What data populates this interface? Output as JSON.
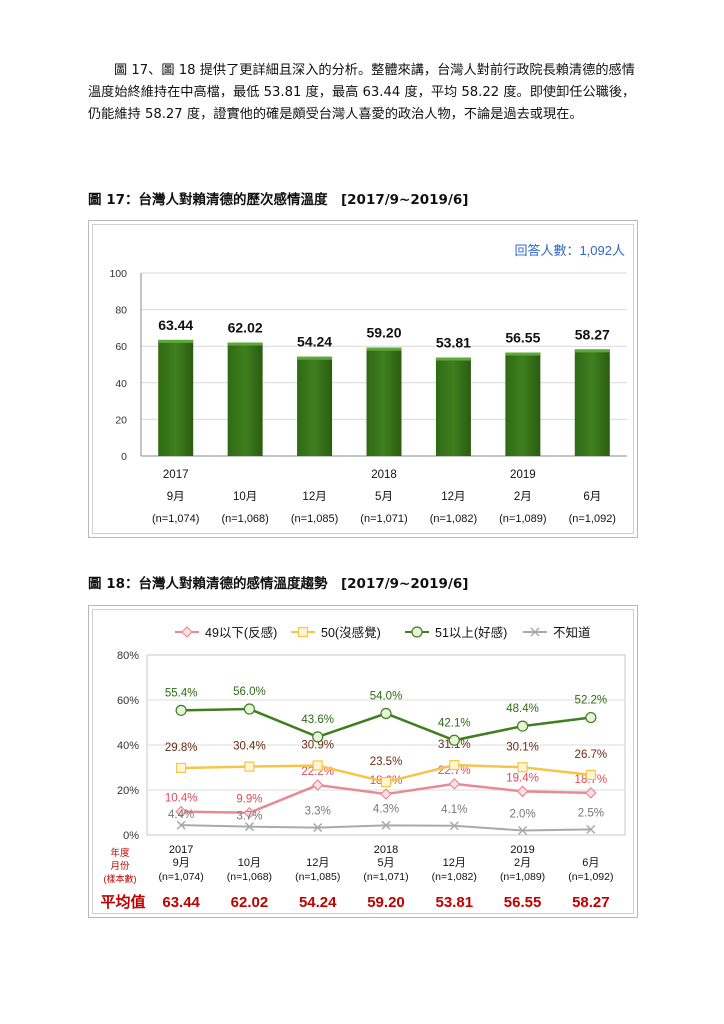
{
  "paragraph": "圖 17、圖 18 提供了更詳細且深入的分析。整體來講，台灣人對前行政院長賴清德的感情溫度始終維持在中高檔，最低 53.81 度，最高 63.44 度，平均 58.22 度。即使卸任公職後，仍能維持 58.27 度，證實他的確是頗受台灣人喜愛的政治人物，不論是過去或現在。",
  "fig17": {
    "caption": "圖 17：台灣人對賴清德的歷次感情溫度　[2017/9~2019/6]",
    "respondents": "回答人數：1,092人"
  },
  "fig18": {
    "caption": "圖 18：台灣人對賴清德的感情溫度趨勢　[2017/9~2019/6]",
    "row_label_year": "年度",
    "row_label_month": "月份",
    "row_label_n": "(樣本數)",
    "avg_label": "平均值"
  },
  "colors": {
    "bar_fill": "#3f7f1f",
    "bar_top": "#5fa83a",
    "negative": "#e88a95",
    "neutral": "#f3c64a",
    "positive": "#3f7f1f",
    "unknown": "#aaaaaa",
    "avg_text": "#c00000",
    "respondents_text": "#2f67c9",
    "neg_label": "#e04a5a",
    "neu_label": "#6b2a12",
    "pos_label": "#2e6b14"
  },
  "chart_data": [
    {
      "type": "bar",
      "categories": [
        "2017/9",
        "2017/10",
        "2017/12",
        "2018/5",
        "2018/12",
        "2019/2",
        "2019/6"
      ],
      "year_labels": [
        "2017",
        "",
        "",
        "2018",
        "",
        "2019",
        ""
      ],
      "month_labels": [
        "9月",
        "10月",
        "12月",
        "5月",
        "12月",
        "2月",
        "6月"
      ],
      "n_labels": [
        "(n=1,074)",
        "(n=1,068)",
        "(n=1,085)",
        "(n=1,071)",
        "(n=1,082)",
        "(n=1,089)",
        "(n=1,092)"
      ],
      "values": [
        63.44,
        62.02,
        54.24,
        59.2,
        53.81,
        56.55,
        58.27
      ],
      "value_labels": [
        "63.44",
        "62.02",
        "54.24",
        "59.20",
        "53.81",
        "56.55",
        "58.27"
      ],
      "ylim": [
        0,
        100
      ],
      "yticks": [
        "0",
        "20",
        "40",
        "60",
        "80",
        "100"
      ],
      "grid": true
    },
    {
      "type": "line",
      "categories": [
        "2017/9",
        "2017/10",
        "2017/12",
        "2018/5",
        "2018/12",
        "2019/2",
        "2019/6"
      ],
      "year_labels": [
        "2017",
        "",
        "",
        "2018",
        "",
        "2019",
        ""
      ],
      "month_labels": [
        "9月",
        "10月",
        "12月",
        "5月",
        "12月",
        "2月",
        "6月"
      ],
      "n_labels": [
        "(n=1,074)",
        "(n=1,068)",
        "(n=1,085)",
        "(n=1,071)",
        "(n=1,082)",
        "(n=1,089)",
        "(n=1,092)"
      ],
      "averages": [
        "63.44",
        "62.02",
        "54.24",
        "59.20",
        "53.81",
        "56.55",
        "58.27"
      ],
      "ylim": [
        0,
        80
      ],
      "yticks": [
        "0%",
        "20%",
        "40%",
        "60%",
        "80%"
      ],
      "grid": true,
      "legend_position": "top",
      "series": [
        {
          "name": "49以下(反感)",
          "key": "negative",
          "values": [
            10.4,
            9.9,
            22.2,
            18.2,
            22.7,
            19.4,
            18.7
          ],
          "labels": [
            "10.4%",
            "9.9%",
            "22.2%",
            "18.2%",
            "22.7%",
            "19.4%",
            "18.7%"
          ]
        },
        {
          "name": "50(沒感覺)",
          "key": "neutral",
          "values": [
            29.8,
            30.4,
            30.9,
            23.5,
            31.1,
            30.1,
            26.7
          ],
          "labels": [
            "29.8%",
            "30.4%",
            "30.9%",
            "23.5%",
            "31.1%",
            "30.1%",
            "26.7%"
          ]
        },
        {
          "name": "51以上(好感)",
          "key": "positive",
          "values": [
            55.4,
            56.0,
            43.6,
            54.0,
            42.1,
            48.4,
            52.2
          ],
          "labels": [
            "55.4%",
            "56.0%",
            "43.6%",
            "54.0%",
            "42.1%",
            "48.4%",
            "52.2%"
          ]
        },
        {
          "name": "不知道",
          "key": "unknown",
          "values": [
            4.4,
            3.7,
            3.3,
            4.3,
            4.1,
            2.0,
            2.5
          ],
          "labels": [
            "4.4%",
            "3.7%",
            "3.3%",
            "4.3%",
            "4.1%",
            "2.0%",
            "2.5%"
          ]
        }
      ]
    }
  ]
}
